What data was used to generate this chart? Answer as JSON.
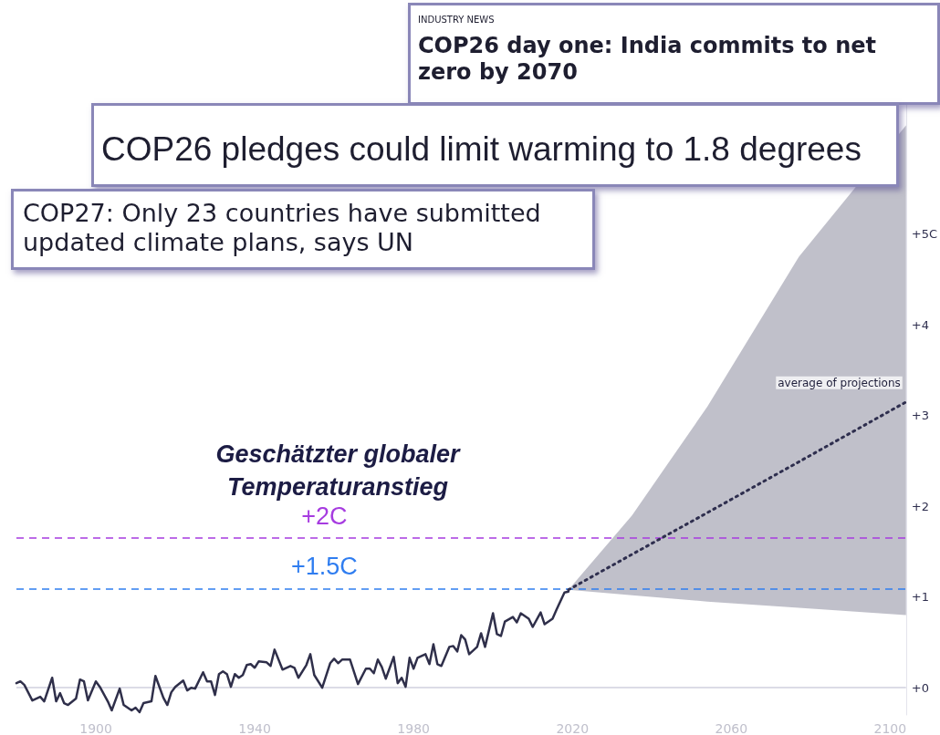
{
  "chart_data": {
    "type": "line",
    "title": "Geschätzter globaler Temperaturanstieg",
    "annotations": [
      "INDUSTRY NEWS",
      "COP26 day one: India commits to net zero by 2070",
      "COP26 pledges could limit warming to 1.8 degrees",
      "COP27: Only 23 countries have submitted updated climate plans, says UN",
      "average of projections"
    ],
    "xlim": [
      1880,
      2104
    ],
    "xticks": [
      1900,
      1940,
      1980,
      2020,
      2060,
      2100
    ],
    "ylim": [
      -0.3,
      7.3
    ],
    "yticks": [
      {
        "value": 0,
        "label": "+0"
      },
      {
        "value": 1,
        "label": "+1"
      },
      {
        "value": 2,
        "label": "+2"
      },
      {
        "value": 3,
        "label": "+3"
      },
      {
        "value": 4,
        "label": "+4"
      },
      {
        "value": 5,
        "label": "+5C"
      }
    ],
    "grid": false,
    "marker": "none",
    "series": [
      {
        "color": "#2f2f4a",
        "line_style": "solid",
        "x": [
          1880,
          1881,
          1882,
          1884,
          1886,
          1887,
          1889,
          1890,
          1891,
          1892,
          1893,
          1895,
          1896,
          1897,
          1898,
          1900,
          1901,
          1903,
          1904,
          1906,
          1907,
          1909,
          1910,
          1911,
          1912,
          1914,
          1915,
          1917,
          1918,
          1919,
          1920,
          1922,
          1923,
          1924,
          1925,
          1927,
          1928,
          1929,
          1930,
          1931,
          1932,
          1933,
          1934,
          1935,
          1936,
          1937,
          1938,
          1939,
          1940,
          1941,
          1943,
          1944,
          1945,
          1947,
          1949,
          1950,
          1951,
          1953,
          1954,
          1955,
          1957,
          1959,
          1960,
          1961,
          1962,
          1964,
          1966,
          1968,
          1969,
          1970,
          1971,
          1972,
          1973,
          1975,
          1976,
          1977,
          1978,
          1979,
          1980,
          1981,
          1983,
          1984,
          1985,
          1986,
          1987,
          1989,
          1990,
          1991,
          1992,
          1993,
          1994,
          1996,
          1997,
          1998,
          2000,
          2001,
          2002,
          2003,
          2005,
          2006,
          2007,
          2009,
          2010,
          2012,
          2013,
          2015,
          2016,
          2018,
          2019
        ],
        "values": [
          0.05,
          0.07,
          0.03,
          -0.14,
          -0.1,
          -0.15,
          0.11,
          -0.15,
          -0.06,
          -0.17,
          -0.19,
          -0.12,
          0.09,
          0.07,
          -0.14,
          0.07,
          0.01,
          -0.15,
          -0.25,
          -0.01,
          -0.19,
          -0.25,
          -0.22,
          -0.27,
          -0.17,
          -0.15,
          0.13,
          -0.11,
          -0.19,
          -0.05,
          0.01,
          0.08,
          -0.03,
          0.0,
          -0.01,
          0.17,
          0.07,
          0.07,
          -0.08,
          0.15,
          0.18,
          0.15,
          0.01,
          0.15,
          0.11,
          0.14,
          0.25,
          0.26,
          0.22,
          0.29,
          0.28,
          0.24,
          0.42,
          0.2,
          0.24,
          0.22,
          0.11,
          0.25,
          0.37,
          0.14,
          0.0,
          0.27,
          0.32,
          0.27,
          0.31,
          0.31,
          0.04,
          0.21,
          0.21,
          0.16,
          0.31,
          0.23,
          0.1,
          0.34,
          0.05,
          0.11,
          0.01,
          0.33,
          0.21,
          0.33,
          0.37,
          0.26,
          0.48,
          0.26,
          0.24,
          0.45,
          0.46,
          0.4,
          0.58,
          0.53,
          0.37,
          0.45,
          0.6,
          0.45,
          0.82,
          0.59,
          0.57,
          0.73,
          0.78,
          0.72,
          0.82,
          0.76,
          0.67,
          0.83,
          0.7,
          0.76,
          0.86,
          1.05,
          1.06
        ]
      },
      {
        "color": "#2e2e4e",
        "line_style": "dotted",
        "x": [
          2019,
          2035,
          2054,
          2077,
          2104
        ],
        "values": [
          1.08,
          1.47,
          1.93,
          2.49,
          3.15
        ],
        "lower": [
          1.08,
          1.02,
          0.95,
          0.88,
          0.8
        ],
        "upper": [
          1.08,
          1.9,
          3.1,
          4.75,
          6.2
        ]
      }
    ],
    "ref_lines": [
      {
        "axis": "y",
        "value": 0,
        "color": "#dcdce6",
        "line_style": "solid"
      },
      {
        "axis": "y",
        "value": 1.65,
        "label": "+2C",
        "color": "#a63be0",
        "line_style": "dashed"
      },
      {
        "axis": "y",
        "value": 1.09,
        "label": "+1.5C",
        "color": "#2f7df0",
        "line_style": "dashed"
      }
    ]
  }
}
